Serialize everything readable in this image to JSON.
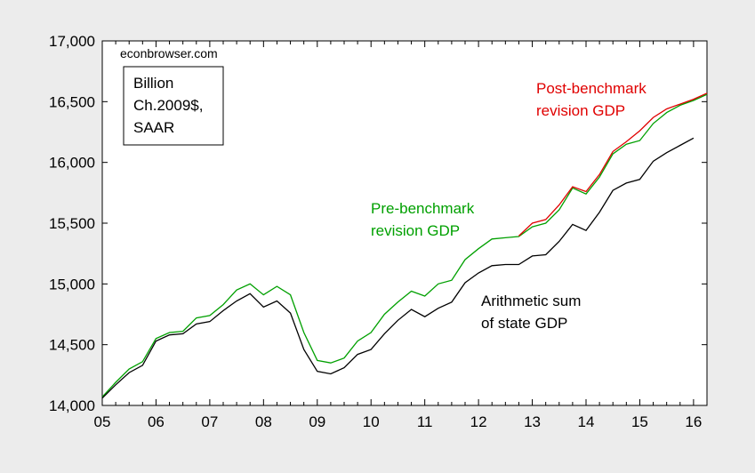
{
  "chart_data": {
    "type": "line",
    "source_label": "econbrowser.com",
    "units_label": [
      "Billion",
      "Ch.2009$,",
      "SAAR"
    ],
    "x_tick_labels": [
      "05",
      "06",
      "07",
      "08",
      "09",
      "10",
      "11",
      "12",
      "13",
      "14",
      "15",
      "16"
    ],
    "x_ticks": [
      2005,
      2006,
      2007,
      2008,
      2009,
      2010,
      2011,
      2012,
      2013,
      2014,
      2015,
      2016
    ],
    "y_ticks": [
      14000,
      14500,
      15000,
      15500,
      16000,
      16500,
      17000
    ],
    "y_tick_labels": [
      "14,000",
      "14,500",
      "15,000",
      "15,500",
      "16,000",
      "16,500",
      "17,000"
    ],
    "xlim": [
      2005.0,
      2016.25
    ],
    "ylim": [
      14000,
      17000
    ],
    "grid": false,
    "annotations": {
      "post": [
        "Post-benchmark",
        "revision GDP"
      ],
      "pre": [
        "Pre-benchmark",
        "revision GDP"
      ],
      "state": [
        "Arithmetic sum",
        "of state GDP"
      ]
    },
    "series": [
      {
        "color": "#00a000",
        "x": [
          2005.0,
          2005.25,
          2005.5,
          2005.75,
          2006.0,
          2006.25,
          2006.5,
          2006.75,
          2007.0,
          2007.25,
          2007.5,
          2007.75,
          2008.0,
          2008.25,
          2008.5,
          2008.75,
          2009.0,
          2009.25,
          2009.5,
          2009.75,
          2010.0,
          2010.25,
          2010.5,
          2010.75,
          2011.0,
          2011.25,
          2011.5,
          2011.75,
          2012.0,
          2012.25,
          2012.5,
          2012.75,
          2013.0,
          2013.25,
          2013.5,
          2013.75,
          2014.0,
          2014.25,
          2014.5,
          2014.75,
          2015.0,
          2015.25,
          2015.5,
          2015.75,
          2016.0,
          2016.25
        ],
        "y": [
          14070,
          14190,
          14300,
          14360,
          14550,
          14600,
          14610,
          14720,
          14740,
          14830,
          14950,
          15000,
          14910,
          14980,
          14910,
          14600,
          14370,
          14350,
          14390,
          14530,
          14600,
          14750,
          14850,
          14940,
          14900,
          15000,
          15030,
          15200,
          15290,
          15370,
          15380,
          15390,
          15470,
          15500,
          15610,
          15790,
          15740,
          15880,
          16070,
          16150,
          16180,
          16320,
          16410,
          16470,
          16510,
          16560
        ]
      },
      {
        "color": "#e00000",
        "x": [
          2012.75,
          2013.0,
          2013.25,
          2013.5,
          2013.75,
          2014.0,
          2014.25,
          2014.5,
          2014.75,
          2015.0,
          2015.25,
          2015.5,
          2015.75,
          2016.0,
          2016.25
        ],
        "y": [
          15395,
          15500,
          15530,
          15650,
          15800,
          15760,
          15900,
          16090,
          16170,
          16260,
          16370,
          16440,
          16480,
          16520,
          16570
        ]
      },
      {
        "color": "#000000",
        "x": [
          2005.0,
          2005.25,
          2005.5,
          2005.75,
          2006.0,
          2006.25,
          2006.5,
          2006.75,
          2007.0,
          2007.25,
          2007.5,
          2007.75,
          2008.0,
          2008.25,
          2008.5,
          2008.75,
          2009.0,
          2009.25,
          2009.5,
          2009.75,
          2010.0,
          2010.25,
          2010.5,
          2010.75,
          2011.0,
          2011.25,
          2011.5,
          2011.75,
          2012.0,
          2012.25,
          2012.5,
          2012.75,
          2013.0,
          2013.25,
          2013.5,
          2013.75,
          2014.0,
          2014.25,
          2014.5,
          2014.75,
          2015.0,
          2015.25,
          2015.5,
          2015.75,
          2016.0
        ],
        "y": [
          14060,
          14170,
          14270,
          14330,
          14530,
          14580,
          14590,
          14670,
          14690,
          14780,
          14860,
          14920,
          14810,
          14860,
          14760,
          14460,
          14280,
          14260,
          14310,
          14420,
          14460,
          14590,
          14700,
          14790,
          14730,
          14800,
          14850,
          15010,
          15090,
          15150,
          15160,
          15160,
          15230,
          15240,
          15350,
          15490,
          15440,
          15590,
          15770,
          15830,
          15860,
          16010,
          16080,
          16140,
          16200
        ]
      }
    ]
  }
}
